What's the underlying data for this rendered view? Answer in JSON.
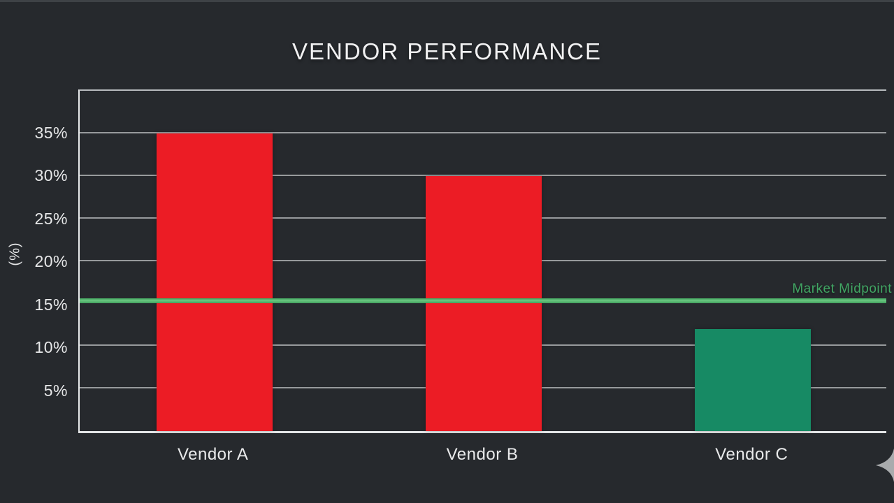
{
  "title": "VENDOR PERFORMANCE",
  "colors": {
    "background": "#26292d",
    "bar_red": "#ec1c25",
    "bar_green": "#178a64",
    "threshold_line": "#5cbc75",
    "threshold_label_text": "#41a563",
    "gridline": "#c3c6c8",
    "axis": "#e9ebec",
    "text": "#f1f1f2"
  },
  "chart_data": {
    "type": "bar",
    "title": "VENDOR PERFORMANCE",
    "categories": [
      "Vendor A",
      "Vendor B",
      "Vendor C"
    ],
    "values": [
      35,
      30,
      12
    ],
    "bar_colors": [
      "#ec1c25",
      "#ec1c25",
      "#178a64"
    ],
    "xlabel": "",
    "ylabel": "(%)",
    "ylim": [
      0,
      40
    ],
    "yticks": [
      5,
      10,
      15,
      20,
      25,
      30,
      35
    ],
    "ytick_labels": [
      "5%",
      "10%",
      "15%",
      "20%",
      "25%",
      "30%",
      "35%"
    ],
    "grid": "horizontal",
    "legend": "none",
    "threshold": {
      "label": "Market Midpoint",
      "value": 15
    }
  },
  "decorations": {
    "sparkle_icon": "four-point-star"
  }
}
